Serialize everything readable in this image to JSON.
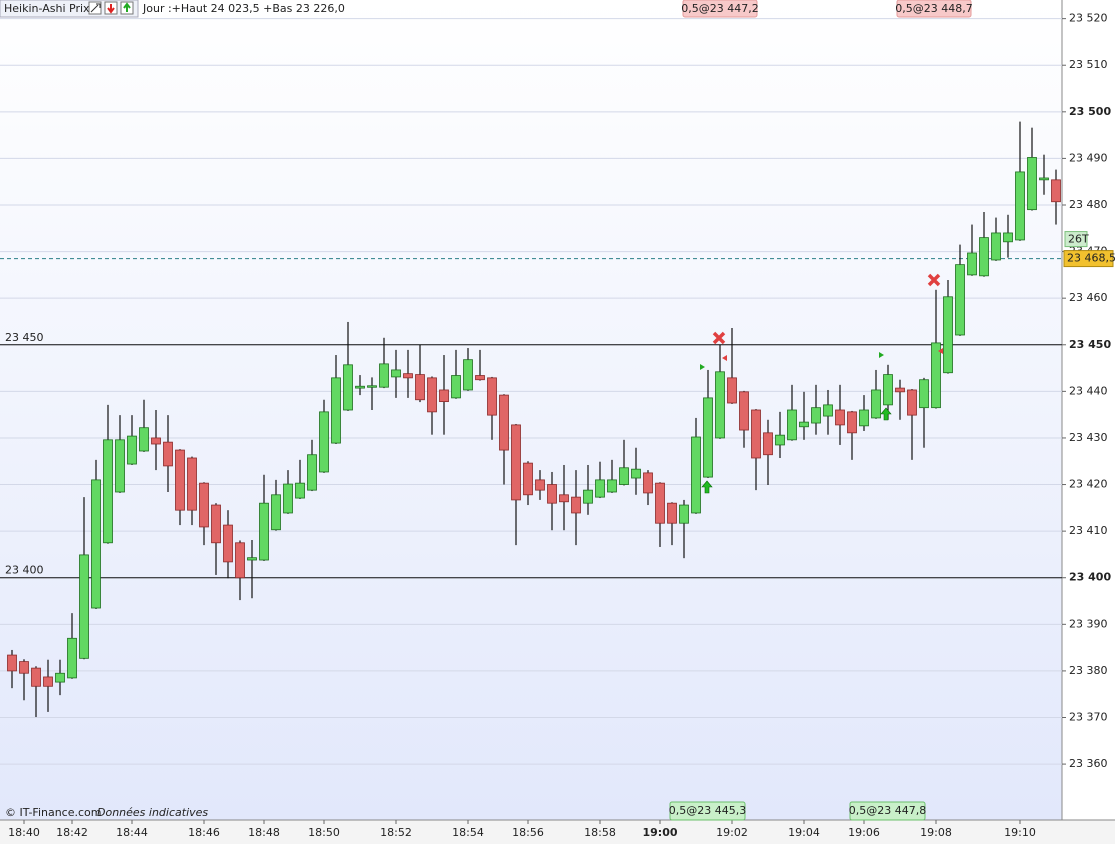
{
  "chart_data": {
    "type": "candlestick",
    "title": "Heikin-Ashi Prix",
    "subtitle": "Jour :+Haut 24 023,5 +Bas 23 226,0",
    "categories": [
      null,
      "18:40",
      null,
      null,
      null,
      "18:42",
      null,
      null,
      null,
      null,
      "18:44",
      null,
      null,
      null,
      null,
      null,
      "18:46",
      null,
      null,
      null,
      null,
      "18:48",
      null,
      null,
      null,
      null,
      "18:50",
      null,
      null,
      null,
      null,
      null,
      "18:52",
      null,
      null,
      null,
      null,
      null,
      "18:54",
      null,
      null,
      null,
      null,
      "18:56",
      null,
      null,
      null,
      null,
      null,
      "18:58",
      null,
      null,
      null,
      null,
      "19:00",
      null,
      null,
      null,
      null,
      null,
      "19:02",
      null,
      null,
      null,
      null,
      null,
      "19:04",
      null,
      null,
      null,
      null,
      "19:06",
      null,
      null,
      null,
      null,
      null,
      "19:08",
      null,
      null,
      null,
      null,
      null,
      null,
      "19:10",
      null,
      null,
      null
    ],
    "open": [
      23383.4,
      23382,
      23380.6,
      23378.7,
      23377.6,
      23378.5,
      23382.7,
      23393.5,
      23407.5,
      23418.4,
      23424.4,
      23427.2,
      23430,
      23429.1,
      23427.4,
      23425.7,
      23420.3,
      23415.6,
      23411.3,
      23407.5,
      23403.8,
      23403.8,
      23410.3,
      23413.9,
      23417.1,
      23418.8,
      23422.7,
      23428.9,
      23436,
      23440.7,
      23440.9,
      23440.9,
      23443.1,
      23443.8,
      23443.6,
      23442.9,
      23440.3,
      23438.6,
      23440.3,
      23443.4,
      23442.9,
      23439.2,
      23432.8,
      23424.6,
      23421,
      23420,
      23417.8,
      23417.3,
      23416,
      23417.3,
      23418.4,
      23420,
      23421.4,
      23422.5,
      23420.3,
      23416,
      23411.7,
      23413.9,
      23421.6,
      23430,
      23442.9,
      23439.9,
      23436,
      23431.1,
      23428.5,
      23429.6,
      23432.4,
      23433.2,
      23434.7,
      23436,
      23435.6,
      23432.6,
      23434.3,
      23437.1,
      23440.7,
      23440.3,
      23436.5,
      23436.5,
      23444,
      23452.1,
      23465,
      23464.8,
      23468.2,
      23472.1,
      23472.5,
      23479,
      23485.4,
      23485.4
    ],
    "high": [
      23384.5,
      23382.5,
      23381,
      23382.4,
      23382.4,
      23392.4,
      23417.3,
      23425.3,
      23437.1,
      23434.9,
      23434.9,
      23438.2,
      23436,
      23434.9,
      23427.6,
      23426,
      23420.5,
      23416,
      23414.5,
      23408,
      23408.1,
      23422.1,
      23421,
      23423.1,
      23425.3,
      23429.6,
      23438.2,
      23447.8,
      23454.9,
      23443.5,
      23443,
      23451.5,
      23448.9,
      23448.9,
      23450,
      23443.2,
      23447.8,
      23448.9,
      23449.3,
      23448.9,
      23443.1,
      23439.4,
      23433,
      23425,
      23423.1,
      23422.7,
      23424.2,
      23423.1,
      23424.2,
      23424.9,
      23425.3,
      23429.6,
      23427.9,
      23423.1,
      23420.5,
      23416.2,
      23416.7,
      23434.3,
      23444.6,
      23450,
      23453.6,
      23440.1,
      23436.2,
      23433.9,
      23435.6,
      23441.4,
      23439.9,
      23441.4,
      23440.3,
      23441.4,
      23435.8,
      23439.2,
      23444.6,
      23445.7,
      23442.5,
      23440.5,
      23442.9,
      23461.8,
      23463.9,
      23471.5,
      23475.8,
      23478.5,
      23477.3,
      23477.9,
      23497.9,
      23496.6,
      23490.8,
      23487.6
    ],
    "low": [
      23376.3,
      23373.7,
      23370.1,
      23371.2,
      23374.8,
      23378.3,
      23382.5,
      23393.3,
      23407.3,
      23418.2,
      23424.2,
      23427,
      23423.1,
      23418.4,
      23411.3,
      23411.3,
      23407,
      23400.6,
      23399.9,
      23395.2,
      23395.6,
      23403.6,
      23410.1,
      23413.7,
      23416.9,
      23418.6,
      23422.5,
      23428.7,
      23435.8,
      23439.2,
      23436,
      23440.7,
      23438.6,
      23438.6,
      23437.7,
      23430.7,
      23430.7,
      23438.4,
      23440.1,
      23442.3,
      23429.6,
      23420,
      23407,
      23415.6,
      23416.7,
      23410.2,
      23410.2,
      23407,
      23413.5,
      23417.1,
      23418.2,
      23419.8,
      23417.8,
      23415.6,
      23406.6,
      23407,
      23404.2,
      23413.7,
      23421.4,
      23429.8,
      23437.3,
      23427.9,
      23418.8,
      23419.9,
      23425.7,
      23429.4,
      23429.6,
      23430.7,
      23430.7,
      23428.5,
      23425.3,
      23431.5,
      23434.1,
      23433.9,
      23433.9,
      23425.3,
      23427.9,
      23436.3,
      23443.8,
      23451.9,
      23464.8,
      23464.6,
      23468,
      23468.7,
      23472.3,
      23478.8,
      23482.2,
      23475.8
    ],
    "close": [
      23380,
      23379.5,
      23376.7,
      23376.7,
      23379.5,
      23387,
      23404.9,
      23421,
      23429.6,
      23429.6,
      23430.4,
      23432.2,
      23428.7,
      23424,
      23414.5,
      23414.5,
      23410.9,
      23407.5,
      23403.4,
      23400,
      23404.3,
      23416,
      23417.8,
      23420.1,
      23420.3,
      23426.4,
      23435.6,
      23442.9,
      23445.7,
      23441.1,
      23441.2,
      23445.9,
      23444.6,
      23442.9,
      23438.2,
      23435.6,
      23437.8,
      23443.4,
      23446.8,
      23442.5,
      23434.9,
      23427.4,
      23416.7,
      23417.8,
      23418.8,
      23416,
      23416.3,
      23413.9,
      23418.8,
      23421,
      23421,
      23423.6,
      23423.3,
      23418.2,
      23411.7,
      23411.7,
      23415.6,
      23430.2,
      23438.6,
      23444.2,
      23437.5,
      23431.7,
      23425.7,
      23426.4,
      23430.6,
      23436,
      23433.4,
      23436.5,
      23437.1,
      23432.8,
      23431.1,
      23436,
      23440.3,
      23443.6,
      23439.9,
      23434.9,
      23442.5,
      23450.4,
      23460.3,
      23467.2,
      23469.7,
      23473,
      23474,
      23474,
      23487.1,
      23490.2,
      23485.8,
      23480.7
    ],
    "up_color": "#62d862",
    "down_color": "#e06666",
    "ylim": [
      23348,
      23524
    ],
    "yticks": [
      {
        "value": 23360,
        "label": "23 360"
      },
      {
        "value": 23370,
        "label": "23 370"
      },
      {
        "value": 23380,
        "label": "23 380"
      },
      {
        "value": 23390,
        "label": "23 390"
      },
      {
        "value": 23400,
        "label": "23 400"
      },
      {
        "value": 23410,
        "label": "23 410"
      },
      {
        "value": 23420,
        "label": "23 420"
      },
      {
        "value": 23430,
        "label": "23 430"
      },
      {
        "value": 23440,
        "label": "23 440"
      },
      {
        "value": 23450,
        "label": "23 450"
      },
      {
        "value": 23460,
        "label": "23 460"
      },
      {
        "value": 23470,
        "label": "23 470"
      },
      {
        "value": 23480,
        "label": "23 480"
      },
      {
        "value": 23490,
        "label": "23 490"
      },
      {
        "value": 23500,
        "label": "23 500"
      },
      {
        "value": 23510,
        "label": "23 510"
      },
      {
        "value": 23520,
        "label": "23 520"
      }
    ],
    "grid": true,
    "price_lines": [
      {
        "value": 23450,
        "label": "23 450"
      },
      {
        "value": 23400,
        "label": "23 400"
      }
    ],
    "current_price": {
      "value": 23468.5,
      "label": "23 468,5"
    },
    "bar_count_label": "26T",
    "order_labels_top": [
      "0,5@23 447,2",
      "0,5@23 448,7"
    ],
    "order_labels_bottom": [
      "0,5@23 445,3",
      "0,5@23 447,8"
    ],
    "footer": "© IT-Finance.com",
    "footer_note": "Données indicatives"
  }
}
